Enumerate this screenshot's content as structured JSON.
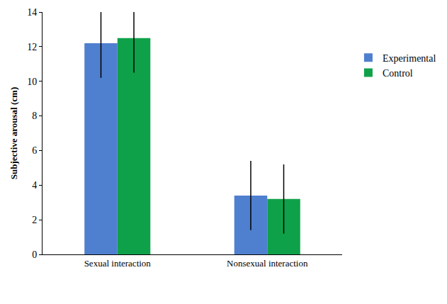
{
  "chart_data": {
    "type": "bar",
    "y_label": "Subjective arousal (cm)",
    "categories": [
      "Sexual interaction",
      "Nonsexual interaction"
    ],
    "series": [
      {
        "name": "Experimental",
        "color": "#4f7fcf",
        "values": [
          12.2,
          3.4
        ],
        "errors": [
          2.0,
          2.0
        ]
      },
      {
        "name": "Control",
        "color": "#0fa14a",
        "values": [
          12.5,
          3.2
        ],
        "errors": [
          2.0,
          2.0
        ]
      }
    ],
    "ylim": [
      0,
      14
    ],
    "yticks": [
      0,
      2,
      4,
      6,
      8,
      10,
      12,
      14
    ],
    "grid": false,
    "legend": "right"
  }
}
